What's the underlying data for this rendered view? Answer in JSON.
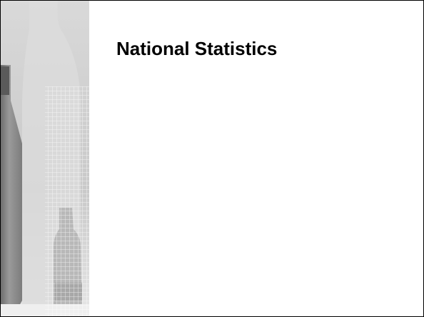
{
  "slide": {
    "title": "National Statistics"
  }
}
